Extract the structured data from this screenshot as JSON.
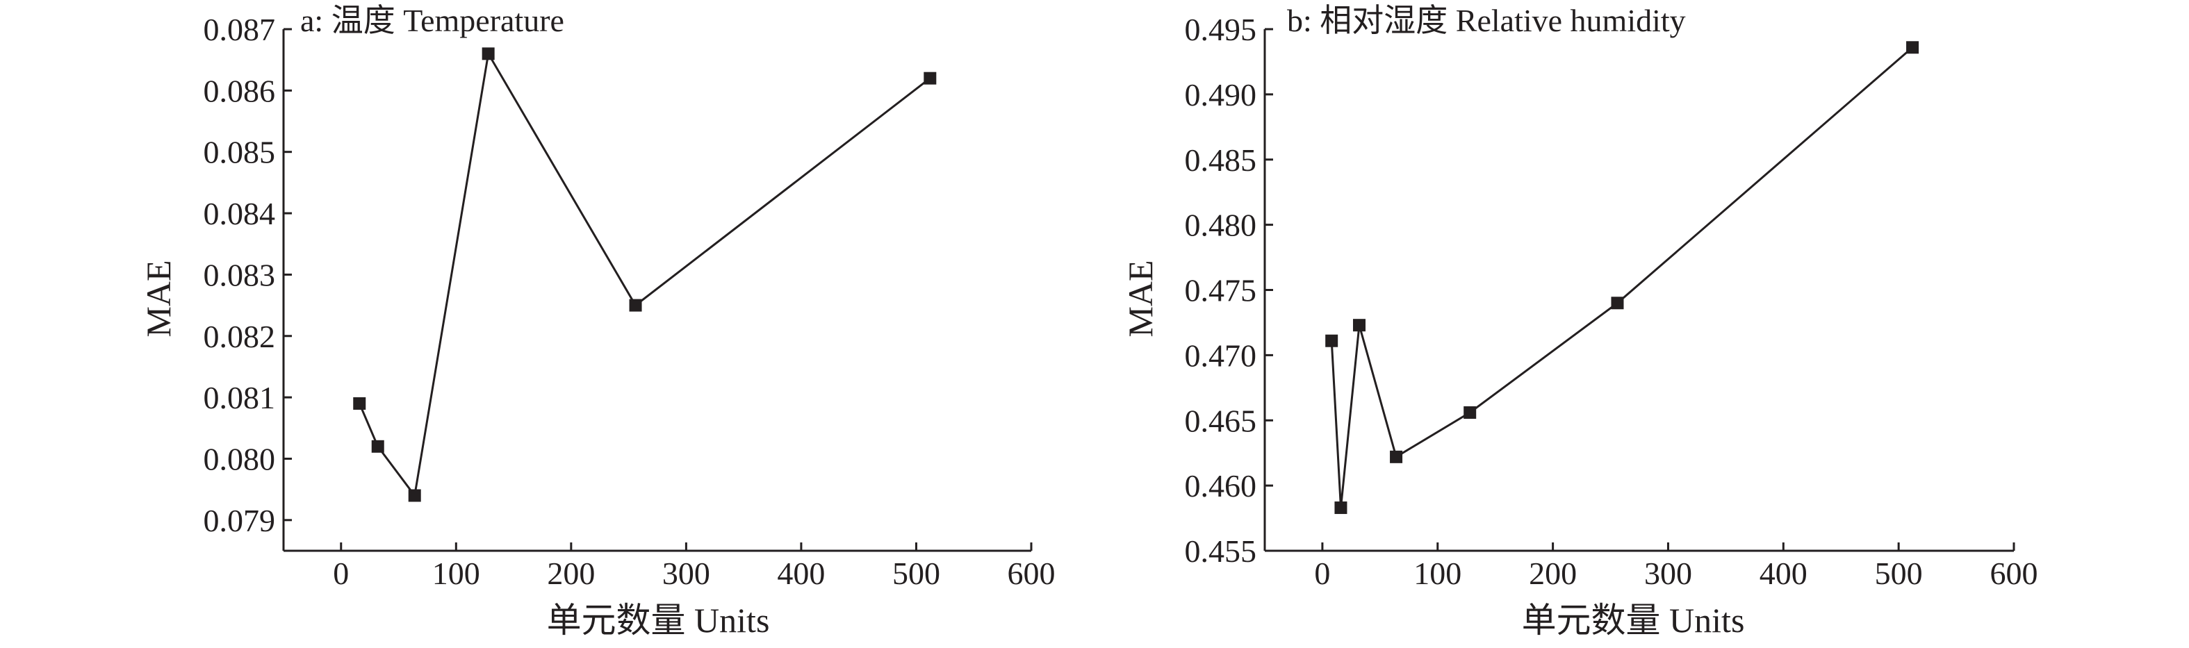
{
  "chart_data": [
    {
      "type": "line",
      "title": "a: 温度 Temperature",
      "xlabel": "单元数量 Units",
      "ylabel": "MAE",
      "xlim": [
        -50,
        600
      ],
      "ylim": [
        0.0785,
        0.087
      ],
      "xticks": [
        0,
        100,
        200,
        300,
        400,
        500,
        600
      ],
      "yticks": [
        0.079,
        0.08,
        0.081,
        0.082,
        0.083,
        0.084,
        0.085,
        0.086,
        0.087
      ],
      "ytick_labels": [
        "0.079",
        "0.080",
        "0.081",
        "0.082",
        "0.083",
        "0.084",
        "0.085",
        "0.086",
        "0.087"
      ],
      "grid": false,
      "marker": "square",
      "series": [
        {
          "x": [
            16,
            32,
            64,
            128,
            256,
            512
          ],
          "y": [
            0.0809,
            0.0802,
            0.0794,
            0.0866,
            0.0825,
            0.0862
          ]
        }
      ]
    },
    {
      "type": "line",
      "title": "b: 相对湿度 Relative humidity",
      "xlabel": "单元数量 Units",
      "ylabel": "MAE",
      "xlim": [
        -50,
        600
      ],
      "ylim": [
        0.455,
        0.495
      ],
      "xticks": [
        0,
        100,
        200,
        300,
        400,
        500,
        600
      ],
      "yticks": [
        0.455,
        0.46,
        0.465,
        0.47,
        0.475,
        0.48,
        0.485,
        0.49,
        0.495
      ],
      "ytick_labels": [
        "0.455",
        "0.460",
        "0.465",
        "0.470",
        "0.475",
        "0.480",
        "0.485",
        "0.490",
        "0.495"
      ],
      "grid": false,
      "marker": "square",
      "series": [
        {
          "x": [
            8,
            16,
            32,
            64,
            128,
            256,
            512
          ],
          "y": [
            0.4711,
            0.4583,
            0.4723,
            0.4622,
            0.4656,
            0.474,
            0.4936
          ]
        }
      ]
    }
  ]
}
